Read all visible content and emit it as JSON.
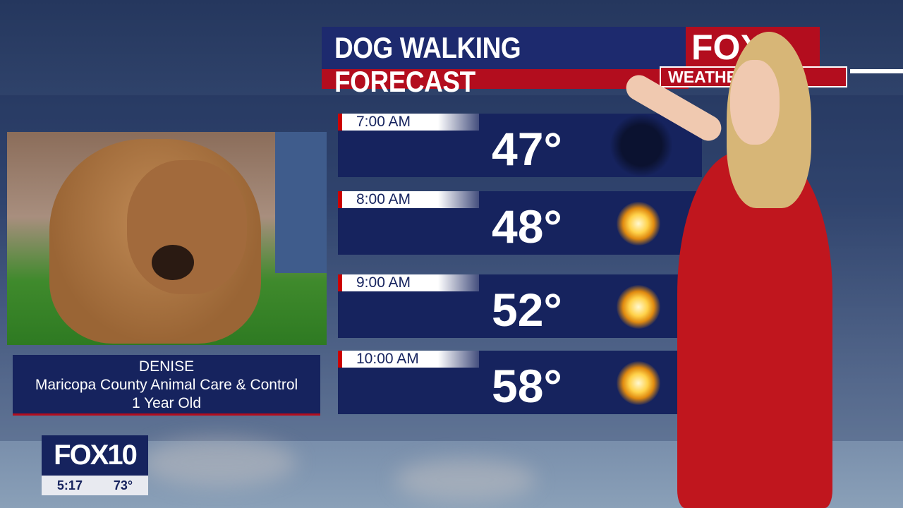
{
  "header": {
    "title": "DOG WALKING FORECAST",
    "logo": "FOX",
    "badge": "WEATHER"
  },
  "forecast": [
    {
      "time": "7:00 AM",
      "temp": "47°",
      "icon": "moon-icon"
    },
    {
      "time": "8:00 AM",
      "temp": "48°",
      "icon": "sun-icon"
    },
    {
      "time": "9:00 AM",
      "temp": "52°",
      "icon": "sun-icon"
    },
    {
      "time": "10:00 AM",
      "temp": "58°",
      "icon": "sun-icon"
    }
  ],
  "pet": {
    "name": "DENISE",
    "shelter": "Maricopa County Animal Care & Control",
    "age": "1 Year Old"
  },
  "bug": {
    "logo": "FOX10",
    "time": "5:17",
    "temp": "73°"
  },
  "colors": {
    "navy": "#16235e",
    "red": "#b30d1e"
  }
}
